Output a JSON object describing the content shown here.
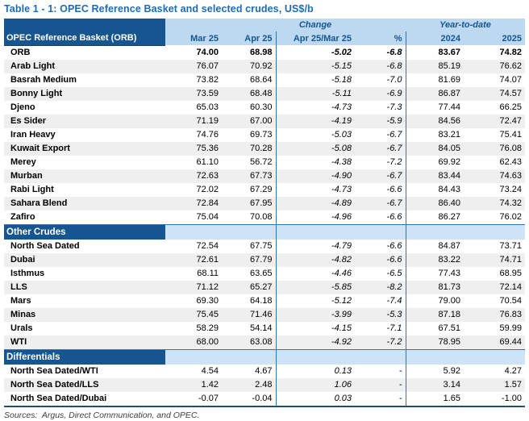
{
  "title": "Table 1 - 1: OPEC Reference Basket and selected crudes, US$/b",
  "colors": {
    "title_blue": "#1C6BB8",
    "dark_blue": "#16558F",
    "header_light_blue": "#BDD9F1",
    "section_light_blue": "#CFE3F6",
    "divider_blue": "#2E75B6",
    "heavy_border_blue": "#1F4E79",
    "stripe_gray": "#EFEFEF"
  },
  "header": {
    "corner_label": "OPEC Reference Basket (ORB)",
    "group_change": "Change",
    "group_ytd": "Year-to-date",
    "columns": [
      "Mar 25",
      "Apr 25",
      "Apr 25/Mar 25",
      "%",
      "2024",
      "2025"
    ]
  },
  "sections": [
    {
      "header": null,
      "rows": [
        {
          "bold": true,
          "cells": [
            "ORB",
            "74.00",
            "68.98",
            "-5.02",
            "-6.8",
            "83.67",
            "74.82"
          ]
        },
        {
          "bold": false,
          "cells": [
            "Arab Light",
            "76.07",
            "70.92",
            "-5.15",
            "-6.8",
            "85.19",
            "76.62"
          ]
        },
        {
          "bold": false,
          "cells": [
            "Basrah Medium",
            "73.82",
            "68.64",
            "-5.18",
            "-7.0",
            "81.69",
            "74.07"
          ]
        },
        {
          "bold": false,
          "cells": [
            "Bonny Light",
            "73.59",
            "68.48",
            "-5.11",
            "-6.9",
            "86.87",
            "74.57"
          ]
        },
        {
          "bold": false,
          "cells": [
            "Djeno",
            "65.03",
            "60.30",
            "-4.73",
            "-7.3",
            "77.44",
            "66.25"
          ]
        },
        {
          "bold": false,
          "cells": [
            "Es Sider",
            "71.19",
            "67.00",
            "-4.19",
            "-5.9",
            "84.56",
            "72.47"
          ]
        },
        {
          "bold": false,
          "cells": [
            "Iran Heavy",
            "74.76",
            "69.73",
            "-5.03",
            "-6.7",
            "83.21",
            "75.41"
          ]
        },
        {
          "bold": false,
          "cells": [
            "Kuwait Export",
            "75.36",
            "70.28",
            "-5.08",
            "-6.7",
            "84.05",
            "76.08"
          ]
        },
        {
          "bold": false,
          "cells": [
            "Merey",
            "61.10",
            "56.72",
            "-4.38",
            "-7.2",
            "69.92",
            "62.43"
          ]
        },
        {
          "bold": false,
          "cells": [
            "Murban",
            "72.63",
            "67.73",
            "-4.90",
            "-6.7",
            "83.44",
            "74.63"
          ]
        },
        {
          "bold": false,
          "cells": [
            "Rabi Light",
            "72.02",
            "67.29",
            "-4.73",
            "-6.6",
            "84.43",
            "73.24"
          ]
        },
        {
          "bold": false,
          "cells": [
            "Sahara Blend",
            "72.84",
            "67.95",
            "-4.89",
            "-6.7",
            "86.40",
            "74.32"
          ]
        },
        {
          "bold": false,
          "cells": [
            "Zafiro",
            "75.04",
            "70.08",
            "-4.96",
            "-6.6",
            "86.27",
            "76.02"
          ]
        }
      ]
    },
    {
      "header": "Other Crudes",
      "rows": [
        {
          "bold": false,
          "cells": [
            "North Sea Dated",
            "72.54",
            "67.75",
            "-4.79",
            "-6.6",
            "84.87",
            "73.71"
          ]
        },
        {
          "bold": false,
          "cells": [
            "Dubai",
            "72.61",
            "67.79",
            "-4.82",
            "-6.6",
            "83.22",
            "74.71"
          ]
        },
        {
          "bold": false,
          "cells": [
            "Isthmus",
            "68.11",
            "63.65",
            "-4.46",
            "-6.5",
            "77.43",
            "68.95"
          ]
        },
        {
          "bold": false,
          "cells": [
            "LLS",
            "71.12",
            "65.27",
            "-5.85",
            "-8.2",
            "81.73",
            "72.14"
          ]
        },
        {
          "bold": false,
          "cells": [
            "Mars",
            "69.30",
            "64.18",
            "-5.12",
            "-7.4",
            "79.00",
            "70.54"
          ]
        },
        {
          "bold": false,
          "cells": [
            "Minas",
            "75.45",
            "71.46",
            "-3.99",
            "-5.3",
            "87.18",
            "76.83"
          ]
        },
        {
          "bold": false,
          "cells": [
            "Urals",
            "58.29",
            "54.14",
            "-4.15",
            "-7.1",
            "67.51",
            "59.99"
          ]
        },
        {
          "bold": false,
          "cells": [
            "WTI",
            "68.00",
            "63.08",
            "-4.92",
            "-7.2",
            "78.95",
            "69.44"
          ]
        }
      ]
    },
    {
      "header": "Differentials",
      "rows": [
        {
          "bold": false,
          "cells": [
            "North Sea Dated/WTI",
            "4.54",
            "4.67",
            "0.13",
            "-",
            "5.92",
            "4.27"
          ]
        },
        {
          "bold": false,
          "cells": [
            "North Sea Dated/LLS",
            "1.42",
            "2.48",
            "1.06",
            "-",
            "3.14",
            "1.57"
          ]
        },
        {
          "bold": false,
          "cells": [
            "North Sea Dated/Dubai",
            "-0.07",
            "-0.04",
            "0.03",
            "-",
            "1.65",
            "-1.00"
          ]
        }
      ]
    }
  ],
  "footer": "Sources:  Argus, Direct Communication, and OPEC."
}
